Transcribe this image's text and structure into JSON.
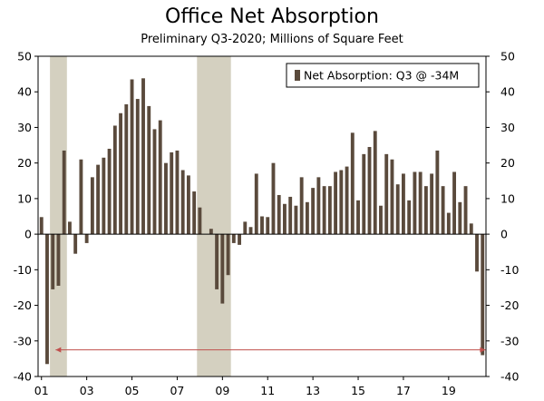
{
  "chart_data": {
    "type": "bar",
    "title": "Office Net Absorption",
    "subtitle": "Preliminary Q3-2020; Millions of Square Feet",
    "legend": {
      "label": "Net Absorption: Q3 @ -34M",
      "placement": "top-right"
    },
    "colors": {
      "bar": "#5a4a3c",
      "recession": "#d4d0c0",
      "reference_line": "#c0504d"
    },
    "ylim": [
      -40,
      50
    ],
    "yticks": [
      50,
      40,
      30,
      20,
      10,
      0,
      -10,
      -20,
      -30,
      -40
    ],
    "ytick_labels": [
      "50",
      "40",
      "30",
      "20",
      "10",
      "0",
      "-10",
      "-20",
      "-30",
      "-40"
    ],
    "x_start": {
      "year": 2001,
      "quarter": 1
    },
    "xticks": [
      {
        "label": "01",
        "index": 0
      },
      {
        "label": "03",
        "index": 8
      },
      {
        "label": "05",
        "index": 16
      },
      {
        "label": "07",
        "index": 24
      },
      {
        "label": "09",
        "index": 32
      },
      {
        "label": "11",
        "index": 40
      },
      {
        "label": "13",
        "index": 48
      },
      {
        "label": "15",
        "index": 56
      },
      {
        "label": "17",
        "index": 64
      },
      {
        "label": "19",
        "index": 72
      }
    ],
    "recessions": [
      {
        "start_index": 1.5,
        "end_index": 4.5
      },
      {
        "start_index": 27.5,
        "end_index": 33.5
      }
    ],
    "reference_line": {
      "value": -32.5,
      "start_index": 2.5,
      "end_index": 78.5
    },
    "series": [
      {
        "name": "Net Absorption",
        "values": [
          4.8,
          -36.5,
          -15.5,
          -14.5,
          23.5,
          3.5,
          -5.5,
          21.0,
          -2.5,
          16.0,
          19.5,
          21.5,
          24.0,
          30.5,
          34.0,
          36.5,
          43.5,
          38.0,
          43.8,
          36.0,
          29.5,
          32.0,
          20.0,
          23.0,
          23.5,
          18.0,
          16.5,
          12.0,
          7.5,
          0.0,
          1.5,
          -15.5,
          -19.5,
          -11.5,
          -2.5,
          -3.0,
          3.5,
          2.0,
          17.0,
          5.0,
          4.8,
          20.0,
          11.0,
          8.5,
          10.5,
          8.0,
          16.0,
          9.0,
          13.0,
          16.0,
          13.5,
          13.5,
          17.5,
          18.0,
          19.0,
          28.5,
          9.5,
          22.5,
          24.5,
          29.0,
          8.0,
          22.5,
          21.0,
          14.0,
          17.0,
          9.5,
          17.5,
          17.5,
          13.5,
          17.0,
          23.5,
          13.5,
          6.0,
          17.5,
          9.0,
          13.5,
          3.0,
          -10.5,
          -34.0
        ]
      }
    ]
  }
}
